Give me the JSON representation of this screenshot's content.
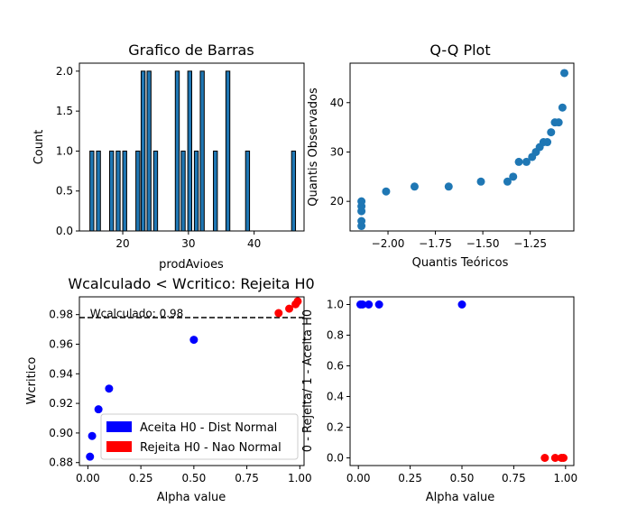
{
  "chart_data": [
    {
      "type": "bar",
      "title": "Grafico de Barras",
      "xlabel": "prodAvioes",
      "ylabel": "Count",
      "xlim": [
        13.4,
        47.6
      ],
      "ylim": [
        0,
        2.1
      ],
      "xticks": [
        20,
        30,
        40
      ],
      "xtick_labels": [
        "20",
        "30",
        "40"
      ],
      "yticks": [
        0,
        0.5,
        1,
        1.5,
        2
      ],
      "ytick_labels": [
        "0.0",
        "0.5",
        "1.0",
        "1.5",
        "2.0"
      ],
      "bar_width": 0.6,
      "bar_color": "#1f77b4",
      "bars": [
        {
          "x": 15.3,
          "value": 1
        },
        {
          "x": 16.3,
          "value": 1
        },
        {
          "x": 18.3,
          "value": 1
        },
        {
          "x": 19.3,
          "value": 1
        },
        {
          "x": 20.3,
          "value": 1
        },
        {
          "x": 22.3,
          "value": 1
        },
        {
          "x": 23.1,
          "value": 2
        },
        {
          "x": 24.0,
          "value": 2
        },
        {
          "x": 25.0,
          "value": 1
        },
        {
          "x": 28.3,
          "value": 2
        },
        {
          "x": 29.2,
          "value": 1
        },
        {
          "x": 30.2,
          "value": 2
        },
        {
          "x": 31.2,
          "value": 1
        },
        {
          "x": 32.1,
          "value": 2
        },
        {
          "x": 34.1,
          "value": 1
        },
        {
          "x": 36.0,
          "value": 2
        },
        {
          "x": 39.0,
          "value": 1
        },
        {
          "x": 46.0,
          "value": 1
        }
      ]
    },
    {
      "type": "scatter",
      "title": "Q-Q Plot",
      "xlabel": "Quantis Teóricos",
      "ylabel": "Quantis Observados",
      "xlim": [
        -2.2,
        -1.02
      ],
      "ylim": [
        14,
        48
      ],
      "xticks": [
        -2.0,
        -1.75,
        -1.5,
        -1.25
      ],
      "xtick_labels": [
        "−2.00",
        "−1.75",
        "−1.50",
        "−1.25"
      ],
      "yticks": [
        20,
        30,
        40
      ],
      "ytick_labels": [
        "20",
        "30",
        "40"
      ],
      "color": "#1f77b4",
      "points": [
        [
          -2.14,
          15
        ],
        [
          -2.14,
          16
        ],
        [
          -2.14,
          18
        ],
        [
          -2.14,
          19
        ],
        [
          -2.14,
          20
        ],
        [
          -2.01,
          22
        ],
        [
          -1.86,
          23
        ],
        [
          -1.68,
          23
        ],
        [
          -1.51,
          24
        ],
        [
          -1.37,
          24
        ],
        [
          -1.34,
          25
        ],
        [
          -1.31,
          28
        ],
        [
          -1.27,
          28
        ],
        [
          -1.24,
          29
        ],
        [
          -1.22,
          30
        ],
        [
          -1.2,
          31
        ],
        [
          -1.18,
          32
        ],
        [
          -1.16,
          32
        ],
        [
          -1.14,
          34
        ],
        [
          -1.12,
          36
        ],
        [
          -1.1,
          36
        ],
        [
          -1.08,
          39
        ],
        [
          -1.07,
          46
        ]
      ]
    },
    {
      "type": "scatter",
      "title": "Wcalculado < Wcritico: Rejeita H0",
      "xlabel": "Alpha value",
      "ylabel": "Wcritico",
      "xlim": [
        -0.04,
        1.02
      ],
      "ylim": [
        0.878,
        0.992
      ],
      "xticks": [
        0,
        0.25,
        0.5,
        0.75,
        1
      ],
      "xtick_labels": [
        "0.00",
        "0.25",
        "0.50",
        "0.75",
        "1.00"
      ],
      "yticks": [
        0.88,
        0.9,
        0.92,
        0.94,
        0.96,
        0.98
      ],
      "ytick_labels": [
        "0.88",
        "0.90",
        "0.92",
        "0.94",
        "0.96",
        "0.98"
      ],
      "hline": {
        "y": 0.978,
        "style": "dashed",
        "color": "#000000"
      },
      "annotation": "Wcalculado: 0.98",
      "annotation_at": [
        0.01,
        0.979
      ],
      "series": [
        {
          "color": "#0000ff",
          "points": [
            [
              0.01,
              0.884
            ],
            [
              0.02,
              0.898
            ],
            [
              0.05,
              0.916
            ],
            [
              0.1,
              0.93
            ],
            [
              0.5,
              0.963
            ]
          ]
        },
        {
          "color": "#ff0000",
          "points": [
            [
              0.9,
              0.981
            ],
            [
              0.95,
              0.984
            ],
            [
              0.98,
              0.987
            ],
            [
              0.99,
              0.989
            ]
          ]
        }
      ],
      "legend": {
        "placement": "lower-right",
        "entries": [
          {
            "label": "Aceita H0 - Dist Normal",
            "color": "#0000ff"
          },
          {
            "label": "Rejeita H0 - Nao Normal",
            "color": "#ff0000"
          }
        ]
      }
    },
    {
      "type": "scatter",
      "title": "",
      "xlabel": "Alpha value",
      "ylabel": "0 - Rejeita/ 1 - Aceita H0",
      "xlim": [
        -0.04,
        1.04
      ],
      "ylim": [
        -0.05,
        1.05
      ],
      "xticks": [
        0,
        0.25,
        0.5,
        0.75,
        1
      ],
      "xtick_labels": [
        "0.00",
        "0.25",
        "0.50",
        "0.75",
        "1.00"
      ],
      "yticks": [
        0,
        0.2,
        0.4,
        0.6,
        0.8,
        1
      ],
      "ytick_labels": [
        "0.0",
        "0.2",
        "0.4",
        "0.6",
        "0.8",
        "1.0"
      ],
      "series": [
        {
          "color": "#0000ff",
          "points": [
            [
              0.01,
              1
            ],
            [
              0.02,
              1
            ],
            [
              0.05,
              1
            ],
            [
              0.1,
              1
            ],
            [
              0.5,
              1
            ]
          ]
        },
        {
          "color": "#ff0000",
          "points": [
            [
              0.9,
              0
            ],
            [
              0.95,
              0
            ],
            [
              0.98,
              0
            ],
            [
              0.99,
              0
            ]
          ]
        }
      ]
    }
  ]
}
